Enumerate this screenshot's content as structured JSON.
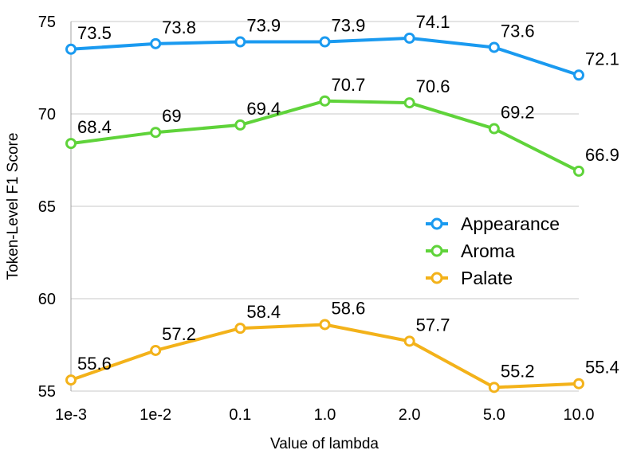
{
  "chart_data": {
    "type": "line",
    "xlabel": "Value of lambda",
    "ylabel": "Token-Level F1 Score",
    "categories": [
      "1e-3",
      "1e-2",
      "0.1",
      "1.0",
      "2.0",
      "5.0",
      "10.0"
    ],
    "ylim": [
      55,
      75
    ],
    "yticks": [
      55,
      60,
      65,
      70,
      75
    ],
    "grid": true,
    "legend_position": "right-middle",
    "series": [
      {
        "name": "Appearance",
        "color": "#1a9af0",
        "values": [
          73.5,
          73.8,
          73.9,
          73.9,
          74.1,
          73.6,
          72.1
        ],
        "labels": [
          "73.5",
          "73.8",
          "73.9",
          "73.9",
          "74.1",
          "73.6",
          "72.1"
        ]
      },
      {
        "name": "Aroma",
        "color": "#5fd33a",
        "values": [
          68.4,
          69,
          69.4,
          70.7,
          70.6,
          69.2,
          66.9
        ],
        "labels": [
          "68.4",
          "69",
          "69.4",
          "70.7",
          "70.6",
          "69.2",
          "66.9"
        ]
      },
      {
        "name": "Palate",
        "color": "#f3b21a",
        "values": [
          55.6,
          57.2,
          58.4,
          58.6,
          57.7,
          55.2,
          55.4
        ],
        "labels": [
          "55.6",
          "57.2",
          "58.4",
          "58.6",
          "57.7",
          "55.2",
          "55.4"
        ]
      }
    ]
  }
}
